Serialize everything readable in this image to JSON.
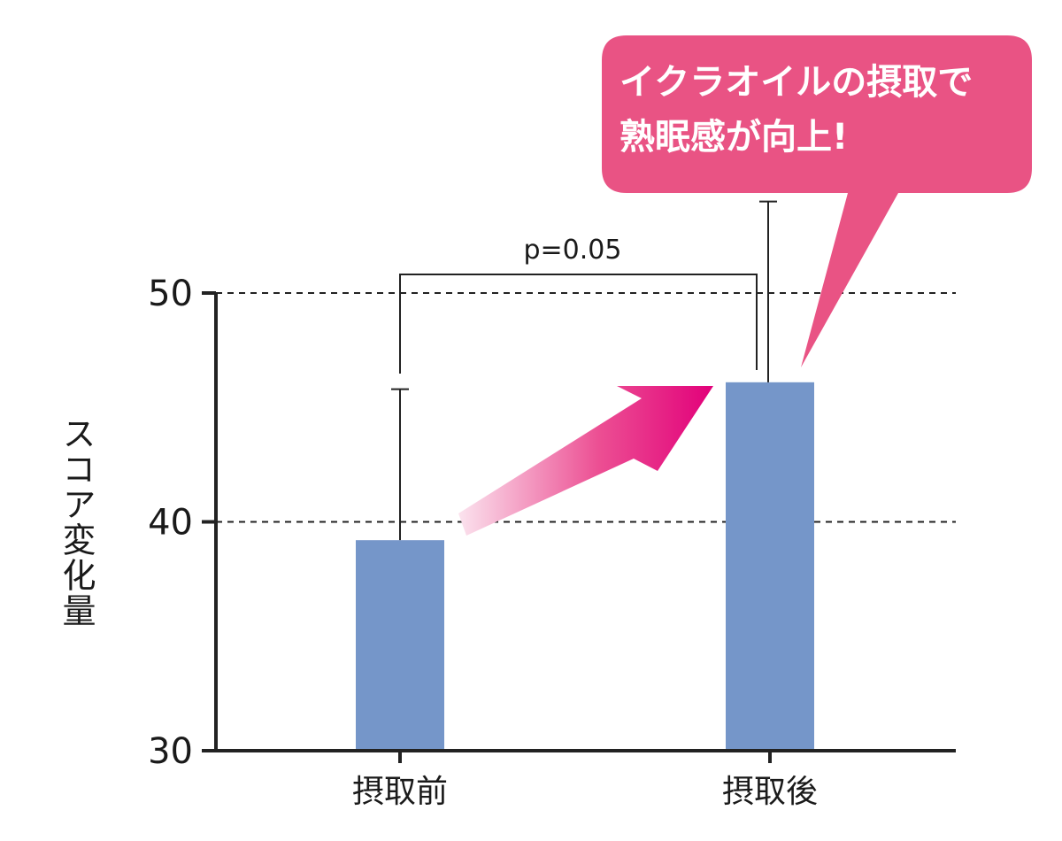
{
  "chart_data": {
    "type": "bar",
    "categories": [
      "摂取前",
      "摂取後"
    ],
    "values": [
      39.2,
      46.1
    ],
    "error_upper": [
      45.8,
      54.0
    ],
    "ylabel": "スコア変化量",
    "ylim": [
      30,
      50
    ],
    "yticks": [
      "30",
      "40",
      "50"
    ],
    "grid": "dashed at 40 and 50",
    "bar_color": "#7596c9",
    "annotation": "p=0.05",
    "callout": "イクラオイルの摂取で\n熟眠感が向上!",
    "callout_color": "#e95384",
    "arrow_color": "#e2007a"
  }
}
